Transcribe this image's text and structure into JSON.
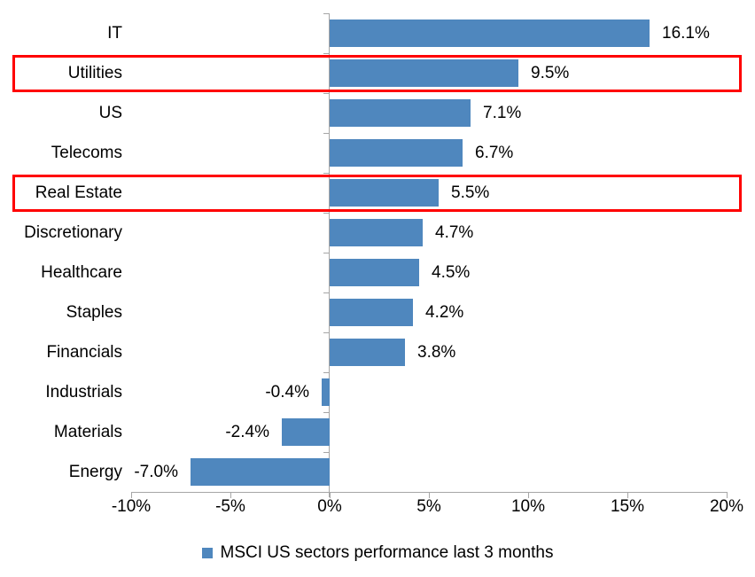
{
  "chart_data": {
    "type": "bar",
    "orientation": "horizontal",
    "title": "",
    "categories": [
      "IT",
      "Utilities",
      "US",
      "Telecoms",
      "Real Estate",
      "Discretionary",
      "Healthcare",
      "Staples",
      "Financials",
      "Industrials",
      "Materials",
      "Energy"
    ],
    "values": [
      16.1,
      9.5,
      7.1,
      6.7,
      5.5,
      4.7,
      4.5,
      4.2,
      3.8,
      -0.4,
      -2.4,
      -7.0
    ],
    "value_labels": [
      "16.1%",
      "9.5%",
      "7.1%",
      "6.7%",
      "5.5%",
      "4.7%",
      "4.5%",
      "4.2%",
      "3.8%",
      "-0.4%",
      "-2.4%",
      "-7.0%"
    ],
    "highlighted_categories": [
      "Utilities",
      "Real Estate"
    ],
    "x_tick_labels": [
      "-10%",
      "-5%",
      "0%",
      "5%",
      "10%",
      "15%",
      "20%"
    ],
    "x_tick_values": [
      -10,
      -5,
      0,
      5,
      10,
      15,
      20
    ],
    "xlim": [
      -10,
      20
    ],
    "grid": "off",
    "legend": {
      "label": "MSCI US sectors performance last 3 months",
      "position": "bottom"
    },
    "colors": {
      "bar": "#4F87BE",
      "highlight_box": "#FF0000",
      "axis": "#A6A6A6",
      "text": "#000000",
      "background": "#FFFFFF"
    }
  }
}
